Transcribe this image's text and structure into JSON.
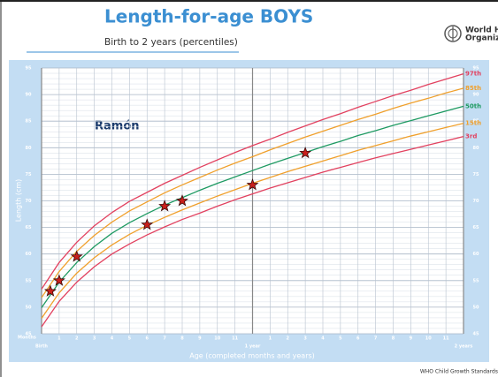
{
  "chart_data": {
    "type": "line",
    "title": "Length-for-age BOYS",
    "subtitle": "Birth to 2 years (percentiles)",
    "organization": [
      "World Health",
      "Organization"
    ],
    "footer": "WHO Child Growth Standards",
    "x_axis_label": "Age (completed months and years)",
    "x_unit_label": "Months",
    "y_axis_label": "Length (cm)",
    "x": [
      0,
      1,
      2,
      3,
      4,
      5,
      6,
      7,
      8,
      9,
      10,
      11,
      12,
      13,
      14,
      15,
      16,
      17,
      18,
      19,
      20,
      21,
      22,
      23,
      24
    ],
    "series": [
      {
        "name": "97th",
        "color": "#e2415f",
        "values": [
          53.4,
          58.4,
          62.2,
          65.3,
          67.8,
          69.9,
          71.6,
          73.3,
          74.8,
          76.3,
          77.7,
          79.1,
          80.4,
          81.6,
          82.9,
          84.1,
          85.3,
          86.4,
          87.6,
          88.7,
          89.8,
          90.8,
          91.9,
          92.9,
          93.9
        ]
      },
      {
        "name": "85th",
        "color": "#f0a02c",
        "values": [
          51.8,
          56.7,
          60.5,
          63.5,
          66.0,
          68.1,
          69.8,
          71.5,
          73.0,
          74.4,
          75.8,
          77.1,
          78.3,
          79.6,
          80.8,
          82.0,
          83.1,
          84.2,
          85.3,
          86.3,
          87.4,
          88.4,
          89.3,
          90.3,
          91.2
        ]
      },
      {
        "name": "50th",
        "color": "#1e9a62",
        "values": [
          49.9,
          54.7,
          58.4,
          61.4,
          63.9,
          65.9,
          67.6,
          69.2,
          70.6,
          72.0,
          73.3,
          74.5,
          75.7,
          76.9,
          78.0,
          79.1,
          80.2,
          81.2,
          82.3,
          83.2,
          84.2,
          85.1,
          86.0,
          86.9,
          87.8
        ]
      },
      {
        "name": "15th",
        "color": "#f0a02c",
        "values": [
          47.9,
          52.7,
          56.4,
          59.3,
          61.7,
          63.7,
          65.4,
          66.9,
          68.3,
          69.6,
          70.9,
          72.1,
          73.3,
          74.4,
          75.5,
          76.5,
          77.5,
          78.5,
          79.5,
          80.4,
          81.3,
          82.2,
          83.0,
          83.8,
          84.6
        ]
      },
      {
        "name": "3rd",
        "color": "#e2415f",
        "values": [
          46.3,
          51.1,
          54.7,
          57.6,
          60.0,
          61.9,
          63.6,
          65.1,
          66.5,
          67.7,
          69.0,
          70.2,
          71.3,
          72.4,
          73.4,
          74.4,
          75.4,
          76.3,
          77.2,
          78.1,
          78.9,
          79.7,
          80.5,
          81.3,
          82.1
        ]
      }
    ],
    "markers": {
      "type": "scatter",
      "name": "Ramón",
      "color": "#c8201c",
      "x": [
        0.5,
        1,
        2,
        6,
        7,
        8,
        12,
        15
      ],
      "values": [
        53,
        55,
        59.5,
        65.5,
        69,
        70,
        73,
        79
      ]
    },
    "xlim": [
      0,
      24
    ],
    "xticks": [
      {
        "value": 0,
        "label": "Birth"
      },
      1,
      2,
      3,
      4,
      5,
      6,
      7,
      8,
      9,
      10,
      11,
      {
        "value": 12,
        "label": "1 year"
      },
      {
        "value": 13,
        "label": "1"
      },
      {
        "value": 14,
        "label": "2"
      },
      {
        "value": 15,
        "label": "3"
      },
      {
        "value": 16,
        "label": "4"
      },
      {
        "value": 17,
        "label": "5"
      },
      {
        "value": 18,
        "label": "6"
      },
      {
        "value": 19,
        "label": "7"
      },
      {
        "value": 20,
        "label": "8"
      },
      {
        "value": 21,
        "label": "9"
      },
      {
        "value": 22,
        "label": "10"
      },
      {
        "value": 23,
        "label": "11"
      },
      {
        "value": 24,
        "label": "2 years"
      }
    ],
    "ylim": [
      45,
      95
    ],
    "yticks": [
      45,
      50,
      55,
      60,
      65,
      70,
      75,
      80,
      85,
      90,
      95
    ],
    "grid": true
  }
}
